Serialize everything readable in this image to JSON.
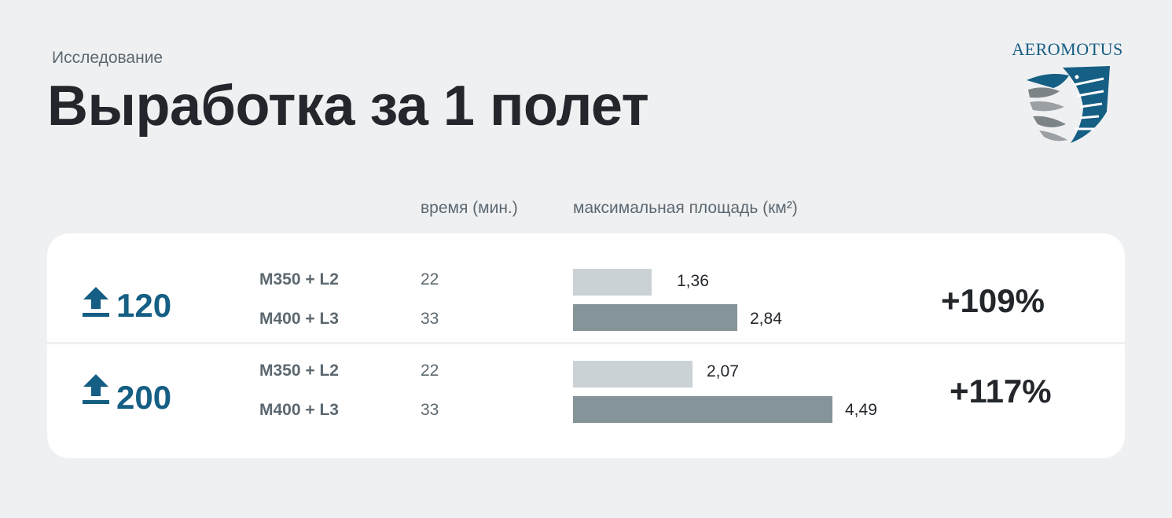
{
  "header": {
    "eyebrow": "Исследование",
    "title": "Выработка за 1 полет"
  },
  "logo": {
    "text": "AEROMOTUS",
    "color": "#155e84"
  },
  "columns": {
    "time": "время (мин.)",
    "area": "максимальная площадь (км²)"
  },
  "colors": {
    "accent": "#155e84",
    "bar_light": "#cbd2d6",
    "bar_dark": "#849499"
  },
  "chart_data": {
    "type": "bar",
    "orientation": "horizontal",
    "groups": [
      {
        "altitude": "120",
        "rows": [
          {
            "config": "M350 + L2",
            "time": "22",
            "area": 1.36,
            "area_label": "1,36"
          },
          {
            "config": "M400 + L3",
            "time": "33",
            "area": 2.84,
            "area_label": "2,84"
          }
        ],
        "increase": "+109%"
      },
      {
        "altitude": "200",
        "rows": [
          {
            "config": "M350 + L2",
            "time": "22",
            "area": 2.07,
            "area_label": "2,07"
          },
          {
            "config": "M400 + L3",
            "time": "33",
            "area": 4.49,
            "area_label": "4,49"
          }
        ],
        "increase": "+117%"
      }
    ]
  }
}
